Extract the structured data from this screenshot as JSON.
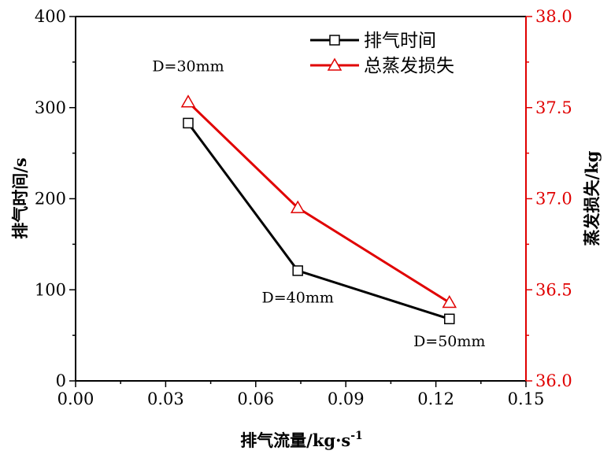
{
  "chart_data": {
    "type": "line",
    "xlabel": "排气流量/kg·s",
    "xlabel_sup": "-1",
    "ylabel_left": "排气时间/s",
    "ylabel_right": "蒸发损失/kg",
    "xlim": [
      0.0,
      0.15
    ],
    "ylim_left": [
      0,
      400
    ],
    "ylim_right": [
      36.0,
      38.0
    ],
    "x_ticks": [
      "0.00",
      "0.03",
      "0.06",
      "0.09",
      "0.12",
      "0.15"
    ],
    "y_left_ticks": [
      "0",
      "100",
      "200",
      "300",
      "400"
    ],
    "y_right_ticks": [
      "36.0",
      "36.5",
      "37.0",
      "37.5",
      "38.0"
    ],
    "legend_position": "top-right",
    "grid": false,
    "series": [
      {
        "name": "排气时间",
        "axis": "left",
        "color": "#000000",
        "marker": "square",
        "x": [
          0.0375,
          0.074,
          0.1245
        ],
        "y": [
          283,
          121,
          68
        ]
      },
      {
        "name": "总蒸发损失",
        "axis": "right",
        "color": "#e00000",
        "marker": "triangle",
        "x": [
          0.0375,
          0.074,
          0.1245
        ],
        "y": [
          37.53,
          36.95,
          36.43
        ]
      }
    ],
    "annotations": [
      {
        "text": "D=30mm",
        "x": 0.0375,
        "y_left": 340
      },
      {
        "text": "D=40mm",
        "x": 0.074,
        "y_left": 86
      },
      {
        "text": "D=50mm",
        "x": 0.1245,
        "y_left": 38
      }
    ]
  }
}
